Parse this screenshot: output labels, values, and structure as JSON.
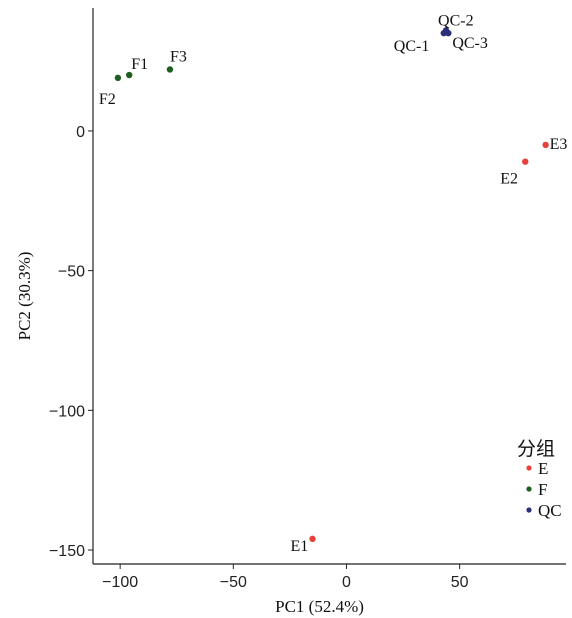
{
  "chart_data": {
    "type": "scatter",
    "xlabel": "PC1 (52.4%)",
    "ylabel": "PC2 (30.3%)",
    "xlim": [
      -112,
      97
    ],
    "ylim": [
      -155,
      44
    ],
    "xticks": [
      -100,
      -50,
      0,
      50
    ],
    "yticks": [
      0,
      -50,
      -100,
      -150
    ],
    "xtick_labels": [
      "−100",
      "−50",
      "0",
      "50"
    ],
    "ytick_labels": [
      "0",
      "−50",
      "−100",
      "−150"
    ],
    "legend": {
      "title": "分组",
      "placement": "bottom-right",
      "entries": [
        {
          "group": "E",
          "label": "E",
          "color": "#e8413a"
        },
        {
          "group": "F",
          "label": "F",
          "color": "#1e5e1e"
        },
        {
          "group": "QC",
          "label": "QC",
          "color": "#2b2f7a"
        }
      ]
    },
    "series": [
      {
        "group": "E",
        "points": [
          {
            "label": "E1",
            "x": -15,
            "y": -146
          },
          {
            "label": "E2",
            "x": 79,
            "y": -11
          },
          {
            "label": "E3",
            "x": 88,
            "y": -5
          }
        ]
      },
      {
        "group": "F",
        "points": [
          {
            "label": "F1",
            "x": -96,
            "y": 20
          },
          {
            "label": "F2",
            "x": -101,
            "y": 19
          },
          {
            "label": "F3",
            "x": -78,
            "y": 22
          }
        ]
      },
      {
        "group": "QC",
        "points": [
          {
            "label": "QC-1",
            "x": 43,
            "y": 35
          },
          {
            "label": "QC-2",
            "x": 44,
            "y": 36
          },
          {
            "label": "QC-3",
            "x": 45,
            "y": 35
          }
        ]
      }
    ],
    "grid": false
  }
}
